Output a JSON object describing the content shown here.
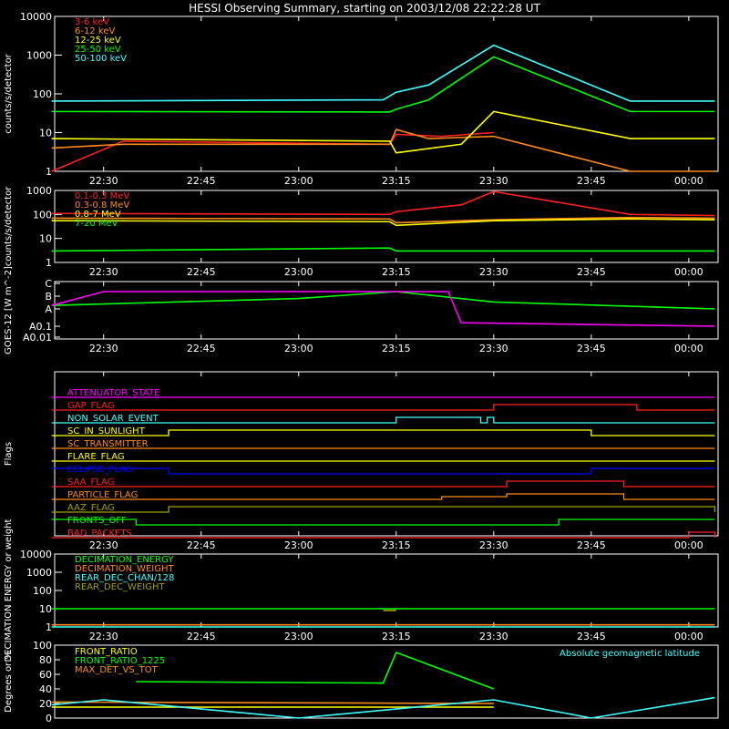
{
  "title": "HESSI Observing Summary, starting on 2003/12/08 22:22:28 UT",
  "colors": {
    "background": "#000000",
    "axes": "#ffffff",
    "red": "#ff2020",
    "orange": "#ff8c1a",
    "yellow": "#ffff00",
    "green": "#00ff00",
    "cyan": "#40ffff",
    "magenta": "#ff00ff",
    "blue": "#0000ff",
    "olive": "#a0a000"
  },
  "chart_data": [
    {
      "id": "panel1",
      "type": "line",
      "ylabel": "counts/s/detector",
      "y_scale": "log",
      "ylim": [
        1,
        10000
      ],
      "y_ticks": [
        "1",
        "10",
        "100",
        "1000",
        "10000"
      ],
      "x_ticks": [
        "22:30",
        "22:45",
        "23:00",
        "23:15",
        "23:30",
        "23:45",
        "00:00"
      ],
      "legend_position": "top-left",
      "series": [
        {
          "name": "3-6 keV",
          "color": "red",
          "x": [
            "22:22",
            "22:33",
            "23:14",
            "23:15",
            "23:22",
            "23:30"
          ],
          "y": [
            1,
            6,
            5,
            9,
            8,
            10
          ]
        },
        {
          "name": "6-12 keV",
          "color": "orange",
          "x": [
            "22:22",
            "22:33",
            "23:14",
            "23:15",
            "23:20",
            "23:30",
            "23:51",
            "00:04"
          ],
          "y": [
            4,
            5,
            5,
            12,
            7,
            8,
            1,
            1
          ]
        },
        {
          "name": "12-25 keV",
          "color": "yellow",
          "x": [
            "22:22",
            "23:14",
            "23:15",
            "23:25",
            "23:30",
            "23:51",
            "00:04"
          ],
          "y": [
            7,
            6,
            3,
            5,
            35,
            7,
            7
          ]
        },
        {
          "name": "25-50 keV",
          "color": "green",
          "x": [
            "22:22",
            "23:14",
            "23:15",
            "23:20",
            "23:30",
            "23:51",
            "00:04"
          ],
          "y": [
            35,
            34,
            40,
            70,
            900,
            35,
            35
          ]
        },
        {
          "name": "50-100 keV",
          "color": "cyan",
          "x": [
            "22:22",
            "23:13",
            "23:15",
            "23:20",
            "23:30",
            "23:51",
            "00:04"
          ],
          "y": [
            65,
            70,
            110,
            170,
            1800,
            65,
            65
          ]
        }
      ]
    },
    {
      "id": "panel2",
      "type": "line",
      "ylabel": "counts/s/detector",
      "y_scale": "log",
      "ylim": [
        1,
        1000
      ],
      "y_ticks": [
        "1",
        "10",
        "100",
        "1000"
      ],
      "x_ticks": [
        "22:30",
        "22:45",
        "23:00",
        "23:15",
        "23:30",
        "23:45",
        "00:00"
      ],
      "legend_position": "top-left",
      "series": [
        {
          "name": "0.1-0.3 MeV",
          "color": "red",
          "x": [
            "22:22",
            "23:14",
            "23:15",
            "23:25",
            "23:30",
            "23:51",
            "00:04"
          ],
          "y": [
            110,
            100,
            130,
            250,
            900,
            100,
            90
          ]
        },
        {
          "name": "0.3-0.8 MeV",
          "color": "orange",
          "x": [
            "22:22",
            "23:14",
            "23:15",
            "23:30",
            "23:51",
            "00:04"
          ],
          "y": [
            70,
            65,
            45,
            60,
            75,
            70
          ]
        },
        {
          "name": "0.8-7 MeV",
          "color": "yellow",
          "x": [
            "22:22",
            "23:14",
            "23:15",
            "23:30",
            "23:51",
            "00:04"
          ],
          "y": [
            55,
            50,
            35,
            55,
            65,
            60
          ]
        },
        {
          "name": "7-20 MeV",
          "color": "green",
          "x": [
            "22:22",
            "23:14",
            "23:15",
            "23:30",
            "23:51",
            "00:04"
          ],
          "y": [
            3,
            4,
            3,
            3,
            3,
            3
          ]
        }
      ]
    },
    {
      "id": "panel3",
      "type": "line",
      "ylabel": "GOES-12 [W m^-2]",
      "y_ticks": [
        "A0.01",
        "A0.1",
        "A",
        "B",
        "C"
      ],
      "x_ticks": [
        "22:30",
        "22:45",
        "23:00",
        "23:15",
        "23:30",
        "23:45",
        "00:00"
      ],
      "series": [
        {
          "color": "green",
          "x": [
            "22:22",
            "23:00",
            "23:15",
            "23:30",
            "00:04"
          ],
          "y": [
            1,
            1.2,
            1.4,
            1.1,
            0.9
          ]
        },
        {
          "color": "magenta",
          "x": [
            "22:22",
            "22:30",
            "23:23",
            "23:25",
            "00:04"
          ],
          "y": [
            1.0,
            1.4,
            1.4,
            0.5,
            0.4
          ]
        }
      ]
    },
    {
      "id": "panel4",
      "type": "line",
      "ylabel": "Flags",
      "x_ticks": [
        "22:30",
        "22:45",
        "23:00",
        "23:15",
        "23:30",
        "23:45",
        "00:00"
      ],
      "flags": [
        {
          "name": "ATTENUATOR_STATE",
          "color": "magenta",
          "x": [
            "22:22",
            "00:04"
          ],
          "y": [
            0,
            0
          ]
        },
        {
          "name": "GAP_FLAG",
          "color": "red",
          "x": [
            "22:22",
            "23:30",
            "23:52",
            "00:04"
          ],
          "y": [
            0,
            1,
            0,
            0
          ]
        },
        {
          "name": "NON_SOLAR_EVENT",
          "color": "cyan",
          "x": [
            "22:22",
            "23:15",
            "23:28",
            "23:29",
            "23:30",
            "00:04"
          ],
          "y": [
            0,
            1,
            0,
            1,
            0,
            0
          ]
        },
        {
          "name": "SC_IN_SUNLIGHT",
          "color": "yellow",
          "x": [
            "22:22",
            "22:40",
            "23:45",
            "00:04"
          ],
          "y": [
            0,
            1,
            0,
            0
          ]
        },
        {
          "name": "SC_TRANSMITTER",
          "color": "orange",
          "x": [
            "22:22",
            "00:04"
          ],
          "y": [
            0,
            0
          ]
        },
        {
          "name": "FLARE_FLAG",
          "color": "yellow",
          "x": [
            "22:22",
            "00:04"
          ],
          "y": [
            0,
            0
          ]
        },
        {
          "name": "ECLIPSE_FLAG",
          "color": "blue",
          "x": [
            "22:22",
            "22:40",
            "23:45",
            "00:04"
          ],
          "y": [
            1,
            0,
            1,
            1
          ]
        },
        {
          "name": "SAA_FLAG",
          "color": "red",
          "x": [
            "22:22",
            "23:32",
            "23:50",
            "00:04"
          ],
          "y": [
            0,
            1,
            0,
            0
          ]
        },
        {
          "name": "PARTICLE_FLAG",
          "color": "orange",
          "x": [
            "22:22",
            "23:22",
            "23:32",
            "23:50",
            "00:04"
          ],
          "y": [
            0,
            0.5,
            1,
            0,
            0
          ]
        },
        {
          "name": "AAZ_FLAG",
          "color": "olive",
          "x": [
            "22:22",
            "22:40",
            "23:45",
            "00:04"
          ],
          "y": [
            0,
            1,
            1,
            0
          ]
        },
        {
          "name": "FRONTS_OFF",
          "color": "green",
          "x": [
            "22:22",
            "22:35",
            "23:40",
            "00:04"
          ],
          "y": [
            1,
            0,
            1,
            1
          ]
        },
        {
          "name": "BAD_PACKETS",
          "color": "red",
          "x": [
            "22:22",
            "00:00",
            "00:04"
          ],
          "y": [
            0,
            1,
            0
          ]
        }
      ]
    },
    {
      "id": "panel5",
      "type": "line",
      "ylabel": "DECIMATION ENERGY or weight",
      "y_scale": "log",
      "ylim": [
        1,
        10000
      ],
      "y_ticks": [
        "1",
        "10",
        "100",
        "1000",
        "10000"
      ],
      "x_ticks": [
        "22:30",
        "22:45",
        "23:00",
        "23:15",
        "23:30",
        "23:45",
        "00:00"
      ],
      "legend_position": "top-left",
      "series": [
        {
          "name": "DECIMATION_ENERGY",
          "color": "green",
          "x": [
            "22:22",
            "00:04"
          ],
          "y": [
            10,
            10
          ]
        },
        {
          "name": "DECIMATION_WEIGHT",
          "color": "orange",
          "x": [
            "22:22",
            "00:04"
          ],
          "y": [
            1.3,
            1.3
          ]
        },
        {
          "name": "REAR_DEC_CHAN/128",
          "color": "cyan",
          "x": [
            "22:22",
            "00:04"
          ],
          "y": [
            1,
            1
          ]
        },
        {
          "name": "REAR_DEC_WEIGHT",
          "color": "olive",
          "x": [
            "23:13",
            "23:15"
          ],
          "y": [
            8,
            8
          ]
        }
      ]
    },
    {
      "id": "panel6",
      "type": "line",
      "ylabel": "Degrees or %",
      "ylim": [
        0,
        100
      ],
      "y_ticks": [
        "0",
        "20",
        "40",
        "60",
        "80",
        "100"
      ],
      "legend_position": "top-left",
      "annotation": "Absolute geomagnetic latitude",
      "series": [
        {
          "name": "FRONT_RATIO",
          "color": "yellow",
          "x": [
            "22:22",
            "23:30"
          ],
          "y": [
            15,
            15
          ]
        },
        {
          "name": "FRONT_RATIO_1225",
          "color": "green",
          "x": [
            "22:35",
            "23:13",
            "23:15",
            "23:30"
          ],
          "y": [
            50,
            48,
            90,
            40
          ]
        },
        {
          "name": "MAX_DET_VS_TOT",
          "color": "orange",
          "x": [
            "22:22",
            "23:30"
          ],
          "y": [
            22,
            20
          ]
        },
        {
          "name": "Absolute geomagnetic latitude",
          "color": "cyan",
          "x": [
            "22:22",
            "22:30",
            "23:00",
            "23:30",
            "23:45",
            "00:04"
          ],
          "y": [
            18,
            25,
            0,
            25,
            0,
            28
          ]
        }
      ]
    }
  ]
}
